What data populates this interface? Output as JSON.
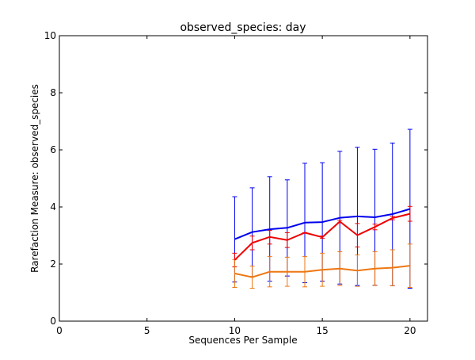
{
  "chart_data": {
    "type": "line",
    "title": "observed_species: day",
    "xlabel": "Sequences Per Sample",
    "ylabel": "Rarefaction Measure: observed_species",
    "xlim": [
      0,
      21
    ],
    "ylim": [
      0,
      10
    ],
    "xticks": [
      "0",
      "5",
      "10",
      "15",
      "20"
    ],
    "yticks": [
      "0",
      "2",
      "4",
      "6",
      "8",
      "10"
    ],
    "grid": false,
    "legend": "none",
    "x": [
      10,
      11,
      12,
      13,
      14,
      15,
      16,
      17,
      18,
      19,
      20
    ],
    "series": [
      {
        "color": "#0000ee",
        "values": [
          2.87,
          3.12,
          3.22,
          3.27,
          3.45,
          3.47,
          3.62,
          3.67,
          3.64,
          3.75,
          3.93
        ],
        "err_low": [
          1.37,
          1.56,
          1.4,
          1.58,
          1.35,
          1.4,
          1.3,
          1.25,
          1.26,
          1.24,
          1.15
        ],
        "err_high": [
          4.36,
          4.67,
          5.06,
          4.95,
          5.53,
          5.55,
          5.95,
          6.09,
          6.02,
          6.24,
          6.72
        ]
      },
      {
        "color": "#ee0000",
        "values": [
          2.14,
          2.74,
          2.95,
          2.84,
          3.1,
          2.94,
          3.49,
          3.01,
          3.3,
          3.61,
          3.76
        ],
        "err_low": [
          1.9,
          2.5,
          2.7,
          2.58,
          3.1,
          2.9,
          3.45,
          2.6,
          3.2,
          3.55,
          3.5
        ],
        "err_high": [
          2.38,
          2.98,
          3.18,
          3.1,
          3.1,
          2.98,
          3.53,
          3.42,
          3.4,
          3.67,
          4.02
        ]
      },
      {
        "color": "#ee7711",
        "values": [
          1.67,
          1.54,
          1.73,
          1.73,
          1.73,
          1.8,
          1.84,
          1.77,
          1.84,
          1.87,
          1.94
        ],
        "err_low": [
          1.18,
          1.15,
          1.2,
          1.22,
          1.2,
          1.22,
          1.25,
          1.22,
          1.25,
          1.24,
          1.18
        ],
        "err_high": [
          2.16,
          1.93,
          2.26,
          2.24,
          2.26,
          2.38,
          2.43,
          2.32,
          2.43,
          2.5,
          2.7
        ]
      }
    ]
  }
}
